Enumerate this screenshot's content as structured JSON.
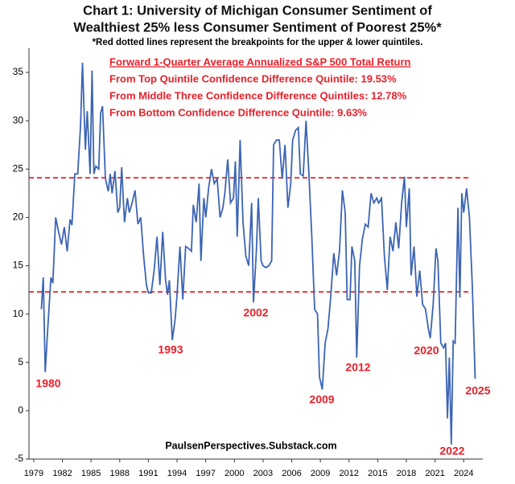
{
  "chart_data": {
    "type": "line",
    "title": [
      "Chart 1: University of Michigan Consumer Sentiment of",
      "Wealthiest 25% less Consumer Sentiment of Poorest 25%*"
    ],
    "subtitle": "*Red dotted lines represent the breakpoints for the upper & lower quintiles.",
    "notes": [
      "Forward 1-Quarter Average Annualized S&P 500 Total Return",
      "From Top Quintile Confidence Difference Quintile:  19.53%",
      "From Middle Three Confidence Difference Quintiles: 12.78%",
      "From Bottom Confidence Difference Quintile:  9.63%"
    ],
    "source": "PaulsenPerspectives.Substack.com",
    "annotations": [
      "1980",
      "1993",
      "2002",
      "2009",
      "2012",
      "2020",
      "2022",
      "2025"
    ],
    "reference_lines": [
      24.1,
      12.3
    ],
    "reference_color": "#e8202a",
    "x": [
      1979.8,
      1980.0,
      1980.2,
      1980.5,
      1980.8,
      1981.0,
      1981.3,
      1981.6,
      1981.9,
      1982.2,
      1982.5,
      1982.8,
      1983.0,
      1983.3,
      1983.6,
      1983.9,
      1984.1,
      1984.4,
      1984.6,
      1984.9,
      1985.1,
      1985.3,
      1985.5,
      1985.8,
      1986.0,
      1986.2,
      1986.5,
      1986.8,
      1987.0,
      1987.2,
      1987.5,
      1987.8,
      1988.0,
      1988.2,
      1988.5,
      1988.8,
      1989.0,
      1989.3,
      1989.6,
      1989.9,
      1990.2,
      1990.5,
      1990.8,
      1991.0,
      1991.3,
      1991.6,
      1991.9,
      1992.2,
      1992.5,
      1992.8,
      1993.0,
      1993.2,
      1993.5,
      1993.8,
      1994.0,
      1994.3,
      1994.6,
      1994.9,
      1995.2,
      1995.5,
      1995.7,
      1996.0,
      1996.3,
      1996.5,
      1996.8,
      1997.0,
      1997.3,
      1997.6,
      1997.9,
      1998.2,
      1998.5,
      1998.8,
      1999.0,
      1999.3,
      1999.6,
      1999.9,
      2000.1,
      2000.3,
      2000.6,
      2000.9,
      2001.2,
      2001.5,
      2001.8,
      2002.0,
      2002.3,
      2002.5,
      2002.8,
      2003.0,
      2003.3,
      2003.6,
      2003.9,
      2004.1,
      2004.4,
      2004.7,
      2005.0,
      2005.3,
      2005.6,
      2005.9,
      2006.1,
      2006.4,
      2006.7,
      2006.9,
      2007.2,
      2007.5,
      2007.8,
      2008.1,
      2008.4,
      2008.7,
      2008.9,
      2009.2,
      2009.5,
      2009.8,
      2010.1,
      2010.4,
      2010.7,
      2011.0,
      2011.3,
      2011.6,
      2011.8,
      2012.1,
      2012.3,
      2012.6,
      2012.8,
      2013.1,
      2013.4,
      2013.7,
      2014.0,
      2014.3,
      2014.6,
      2014.9,
      2015.1,
      2015.4,
      2015.7,
      2016.0,
      2016.3,
      2016.6,
      2016.9,
      2017.2,
      2017.5,
      2017.8,
      2018.0,
      2018.3,
      2018.5,
      2018.8,
      2019.1,
      2019.4,
      2019.7,
      2020.0,
      2020.3,
      2020.5,
      2020.8,
      2021.1,
      2021.3,
      2021.6,
      2021.9,
      2022.1,
      2022.3,
      2022.5,
      2022.7,
      2022.9,
      2023.1,
      2023.4,
      2023.6,
      2023.8,
      2024.0,
      2024.3,
      2024.6,
      2024.9,
      2025.2
    ],
    "values": [
      10.5,
      13.8,
      4.0,
      9.0,
      13.8,
      13.2,
      20.0,
      18.5,
      17.2,
      19.0,
      16.5,
      19.8,
      19.2,
      24.5,
      24.5,
      29.5,
      36.0,
      27.0,
      31.0,
      24.5,
      35.2,
      24.5,
      25.3,
      25.0,
      30.8,
      31.5,
      24.0,
      22.7,
      24.5,
      22.5,
      24.8,
      20.5,
      21.0,
      25.2,
      19.5,
      22.0,
      20.5,
      21.5,
      22.8,
      19.3,
      20.0,
      16.0,
      13.0,
      12.2,
      12.2,
      14.5,
      18.0,
      13.0,
      18.5,
      13.5,
      12.0,
      13.5,
      7.3,
      9.5,
      12.0,
      17.0,
      11.5,
      17.0,
      16.8,
      16.5,
      21.3,
      19.5,
      23.5,
      15.5,
      22.0,
      20.0,
      23.0,
      25.0,
      23.5,
      24.0,
      20.0,
      21.0,
      22.5,
      26.0,
      21.5,
      22.0,
      25.8,
      18.0,
      28.0,
      19.5,
      16.0,
      15.0,
      21.5,
      11.2,
      16.5,
      22.0,
      15.5,
      15.0,
      14.8,
      15.0,
      15.5,
      27.5,
      28.0,
      28.0,
      24.0,
      27.5,
      21.0,
      23.5,
      28.0,
      29.0,
      29.3,
      24.5,
      24.3,
      30.0,
      24.5,
      18.0,
      10.5,
      10.0,
      3.5,
      2.2,
      7.0,
      8.5,
      12.0,
      16.3,
      14.0,
      16.5,
      22.8,
      20.5,
      11.5,
      11.5,
      17.0,
      15.5,
      5.5,
      15.0,
      17.8,
      19.3,
      19.0,
      22.5,
      21.5,
      22.0,
      21.5,
      22.0,
      16.0,
      12.5,
      18.0,
      16.5,
      19.5,
      16.8,
      21.5,
      24.2,
      19.0,
      23.0,
      14.0,
      17.0,
      11.8,
      14.5,
      11.0,
      10.5,
      8.5,
      7.5,
      11.0,
      16.8,
      15.5,
      7.0,
      6.5,
      7.0,
      -0.8,
      5.5,
      -3.5,
      7.2,
      7.0,
      21.0,
      11.7,
      22.5,
      20.5,
      23.0,
      20.0,
      13.0,
      3.3
    ],
    "color": "#3c64b4",
    "xlim": [
      1978.5,
      2026
    ],
    "xticks": [
      1979,
      1982,
      1985,
      1988,
      1991,
      1994,
      1997,
      2000,
      2003,
      2006,
      2009,
      2012,
      2015,
      2018,
      2021,
      2024
    ],
    "ylim": [
      -5,
      37.5
    ],
    "yticks": [
      -5,
      0,
      5,
      10,
      15,
      20,
      25,
      30,
      35
    ]
  }
}
